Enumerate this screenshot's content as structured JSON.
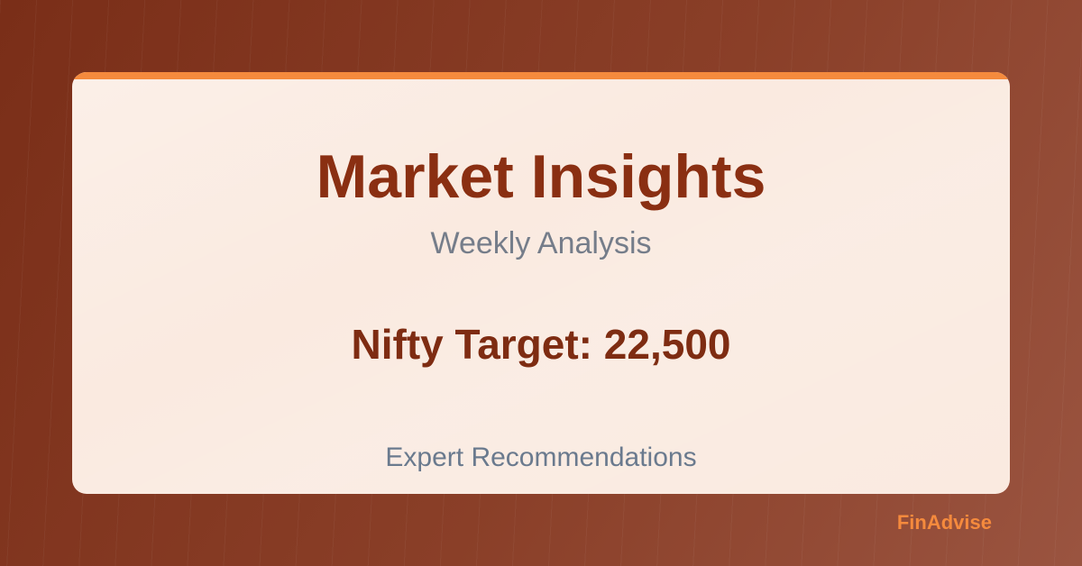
{
  "card": {
    "title": "Market Insights",
    "subtitle": "Weekly Analysis",
    "target": "Nifty Target: 22,500",
    "footer": "Expert Recommendations"
  },
  "brand": {
    "name": "FinAdvise"
  },
  "colors": {
    "background": "#7a2e18",
    "card": "#faeae0",
    "accent": "#f58a3d",
    "title": "#8a2f12",
    "subtitle": "#757d8a",
    "footer": "#6a7a8e"
  }
}
